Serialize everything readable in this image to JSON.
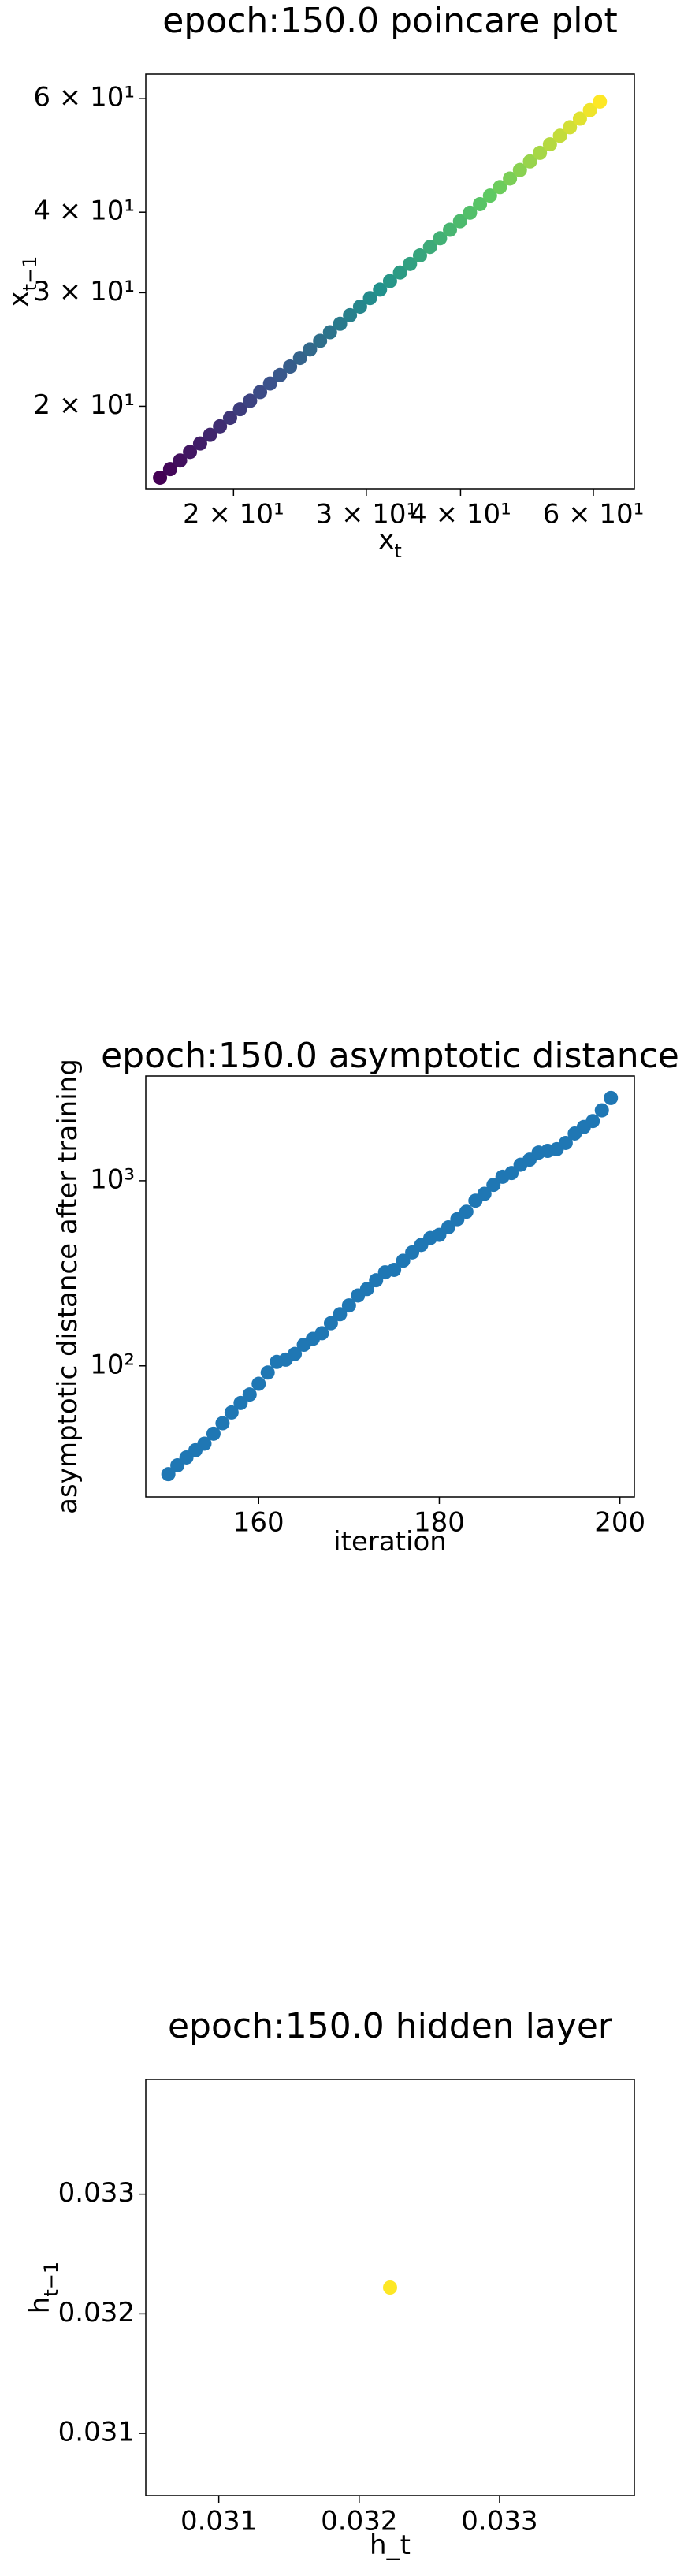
{
  "chart_data": [
    {
      "type": "scatter",
      "title": "epoch:150.0 poincare plot",
      "xlabel": "x",
      "xlabel_subscript": "t",
      "ylabel": "x",
      "ylabel_subscript": "t−1",
      "xscale": "log",
      "yscale": "log",
      "colormap": "viridis",
      "x": [
        15.98,
        16.48,
        16.99,
        17.51,
        18.06,
        18.62,
        19.19,
        19.79,
        20.4,
        21.04,
        21.69,
        22.36,
        23.05,
        23.77,
        24.5,
        25.26,
        26.05,
        26.85,
        27.69,
        28.54,
        29.43,
        30.34,
        31.28,
        32.25,
        33.25,
        34.28,
        35.34,
        36.44,
        37.57,
        38.73,
        39.93,
        41.17,
        42.44,
        43.76,
        45.11,
        46.51,
        47.95,
        49.44,
        50.97,
        52.55,
        54.18,
        55.86,
        57.59,
        59.37,
        61.21
      ],
      "y": [
        15.5,
        15.98,
        16.48,
        16.99,
        17.51,
        18.06,
        18.62,
        19.19,
        19.79,
        20.4,
        21.04,
        21.69,
        22.36,
        23.05,
        23.77,
        24.5,
        25.26,
        26.05,
        26.85,
        27.69,
        28.54,
        29.43,
        30.34,
        31.28,
        32.25,
        33.25,
        34.28,
        35.34,
        36.44,
        37.57,
        38.73,
        39.93,
        41.17,
        42.44,
        43.76,
        45.11,
        46.51,
        47.95,
        49.44,
        50.97,
        52.55,
        54.18,
        55.86,
        57.59,
        59.37
      ],
      "xlim": [
        15.3,
        68
      ],
      "ylim": [
        14.9,
        65.5
      ],
      "xticks": [
        {
          "value": 20,
          "label": "2 × 10¹"
        },
        {
          "value": 30,
          "label": "3 × 10¹"
        },
        {
          "value": 40,
          "label": "4 × 10¹"
        },
        {
          "value": 60,
          "label": "6 × 10¹"
        }
      ],
      "yticks": [
        {
          "value": 20,
          "label": "2 × 10¹"
        },
        {
          "value": 30,
          "label": "3 × 10¹"
        },
        {
          "value": 40,
          "label": "4 × 10¹"
        },
        {
          "value": 60,
          "label": "6 × 10¹"
        }
      ]
    },
    {
      "type": "scatter",
      "title": "epoch:150.0 asymptotic distance",
      "xlabel": "iteration",
      "ylabel": "asymptotic distance after training",
      "xscale": "linear",
      "yscale": "log",
      "color": "#1f77b4",
      "x": [
        150,
        151,
        152,
        153,
        154,
        155,
        156,
        157,
        158,
        159,
        160,
        161,
        162,
        163,
        164,
        165,
        166,
        167,
        168,
        169,
        170,
        171,
        172,
        173,
        174,
        175,
        176,
        177,
        178,
        179,
        180,
        181,
        182,
        183,
        184,
        185,
        186,
        187,
        188,
        189,
        190,
        191,
        192,
        193,
        194,
        195,
        196,
        197,
        198,
        199
      ],
      "y": [
        26,
        29,
        32,
        35,
        38,
        43,
        49,
        56,
        63,
        70,
        80,
        92,
        105,
        108,
        116,
        130,
        140,
        150,
        170,
        190,
        212,
        240,
        260,
        290,
        320,
        330,
        370,
        410,
        450,
        490,
        510,
        560,
        620,
        680,
        780,
        850,
        950,
        1050,
        1100,
        1220,
        1300,
        1420,
        1450,
        1480,
        1600,
        1800,
        1950,
        2100,
        2400,
        2800
      ],
      "xlim": [
        147.5,
        201.6
      ],
      "ylim": [
        19.6,
        3680
      ],
      "xticks": [
        160,
        180,
        200
      ],
      "yticks": [
        {
          "value": 100,
          "label": "10²"
        },
        {
          "value": 1000,
          "label": "10³"
        }
      ]
    },
    {
      "type": "scatter",
      "title": "epoch:150.0 hidden layer",
      "xlabel": "h_t",
      "ylabel": "h",
      "ylabel_subscript": "t−1",
      "xscale": "linear",
      "yscale": "linear",
      "color": "#fde725",
      "x": [
        0.03222
      ],
      "y": [
        0.03222
      ],
      "xlim": [
        0.03048,
        0.03396
      ],
      "ylim": [
        0.03048,
        0.03396
      ],
      "xticks": [
        0.031,
        0.032,
        0.033
      ],
      "yticks": [
        0.031,
        0.032,
        0.033
      ]
    }
  ]
}
